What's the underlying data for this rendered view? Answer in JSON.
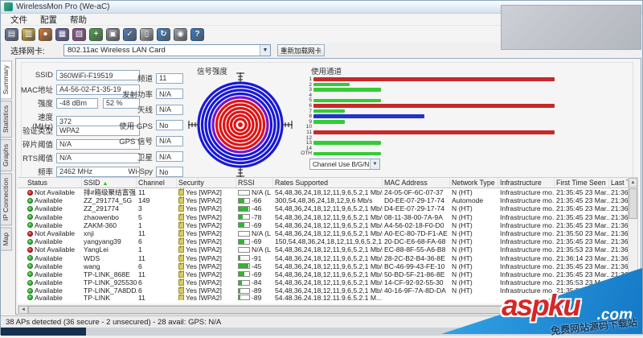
{
  "window": {
    "title": "WirelessMon Pro (We-aC)"
  },
  "menu": {
    "items": [
      "文件",
      "配置",
      "帮助"
    ]
  },
  "toolbar": {
    "icons": [
      {
        "name": "save-icon",
        "glyph": "▤",
        "color": "#6b7fae"
      },
      {
        "name": "open-folder-icon",
        "glyph": "▥",
        "color": "#e3bb3e"
      },
      {
        "name": "globe-icon",
        "glyph": "●",
        "color": "#e07820"
      },
      {
        "name": "adapters-icon",
        "glyph": "▦",
        "color": "#6a5fb0"
      },
      {
        "name": "adapters2-icon",
        "glyph": "▧",
        "color": "#9a4f9e"
      },
      {
        "name": "start-monitor-icon",
        "glyph": "+",
        "color": "#4aa44a"
      },
      {
        "name": "camera-icon",
        "glyph": "▣",
        "color": "#8a8f96"
      },
      {
        "name": "verify-icon",
        "glyph": "✓",
        "color": "#4a7fc0"
      },
      {
        "name": "report-icon",
        "glyph": "▯",
        "color": "#b9bdc4"
      },
      {
        "name": "refresh-icon",
        "glyph": "↻",
        "color": "#3a86d4"
      },
      {
        "name": "web-icon",
        "glyph": "◉",
        "color": "#9aa2ac"
      },
      {
        "name": "help-icon",
        "glyph": "?",
        "color": "#2f7fd0"
      }
    ]
  },
  "nic_bar": {
    "label": "选择网卡:",
    "selected": "802.11ac Wireless LAN Card",
    "reload_button": "重新加载网卡"
  },
  "tabs": [
    {
      "label": "Summary",
      "active": true
    },
    {
      "label": "Statistics",
      "active": false
    },
    {
      "label": "Graphs",
      "active": false
    },
    {
      "label": "IP Connection",
      "active": false
    },
    {
      "label": "Map",
      "active": false
    }
  ],
  "summary": {
    "fields_left": [
      {
        "label": "SSID",
        "value": "360WiFi-F19519"
      },
      {
        "label": "MAC地址",
        "value": "A4-56-02-F1-35-19"
      },
      {
        "label": "强度",
        "value": "-48 dBm",
        "value2": "52 %"
      },
      {
        "label": "速度 (MHz)",
        "value": "372"
      },
      {
        "label": "验证类型",
        "value": "WPA2"
      },
      {
        "label": "碎片阈值",
        "value": "N/A"
      },
      {
        "label": "RTS阈值",
        "value": "N/A"
      },
      {
        "label": "频率",
        "value": "2462 MHz"
      }
    ],
    "fields_mid": [
      {
        "label": "频道",
        "value": "11"
      },
      {
        "label": "发射功率",
        "value": "N/A"
      },
      {
        "label": "天线",
        "value": "N/A"
      },
      {
        "label": "使用 GPS",
        "value": "No"
      },
      {
        "label": "GPS 信号",
        "value": "N/A"
      },
      {
        "label": "卫星",
        "value": "N/A"
      },
      {
        "label": "Wi-Spy",
        "value": "No"
      }
    ],
    "radar_title": "信号强度",
    "channel_use_title": "使用通道",
    "channel_dropdown": "Channel Use B/G/N"
  },
  "chart_data": {
    "type": "bar",
    "orientation": "horizontal",
    "title": "使用通道",
    "categories": [
      "1",
      "2",
      "3",
      "4",
      "5",
      "6",
      "7",
      "8",
      "9",
      "10",
      "11",
      "12",
      "13",
      "14",
      "OTH"
    ],
    "values": [
      100,
      15,
      28,
      0,
      28,
      100,
      13,
      46,
      13,
      0,
      100,
      0,
      28,
      0,
      28
    ],
    "colors": [
      "#c82828",
      "#33cc33",
      "#33cc33",
      "#33cc33",
      "#33cc33",
      "#c82828",
      "#33cc33",
      "#2233cc",
      "#33cc33",
      "#33cc33",
      "#c82828",
      "#33cc33",
      "#33cc33",
      "#33cc33",
      "#33cc33"
    ],
    "xlim": [
      0,
      100
    ],
    "legend": "Channel Use B/G/N"
  },
  "table": {
    "columns": [
      "Status",
      "SSID",
      "Channel",
      "Security",
      "RSSI",
      "Rates Supported",
      "MAC Address",
      "Network Type",
      "Infrastructure",
      "First Time Seen",
      "Last Time S"
    ],
    "sort_column": "SSID",
    "rows": [
      {
        "status": "Not Available",
        "available": false,
        "ssid": "排#箱级聚结富强..",
        "channel": "11",
        "security": "Yes [WPA2]",
        "rssi": "N/A (L",
        "rssi_fill": 0,
        "rates": "54,48,36,24,18,12,11,9,6,5.2,1 Mb/s",
        "mac": "24-05-0F-6C-07-37",
        "network_type": "N (HT)",
        "infrastructure": "Infrastructure mo...",
        "first_seen": "21:35:45 23 Mar...",
        "last_seen": "21:36:08 2..."
      },
      {
        "status": "Available",
        "available": true,
        "ssid": "ZZ_291774_5G",
        "channel": "149",
        "security": "Yes [WPA2]",
        "rssi": "-66",
        "rssi_fill": 0.55,
        "rates": "300,54,48,36,24,18,12,9,6 Mb/s",
        "mac": "D0-EE-07-29-17-74",
        "network_type": "Automode",
        "infrastructure": "Infrastructure mo...",
        "first_seen": "21:35:45 23 Mar...",
        "last_seen": "21:36:14 2..."
      },
      {
        "status": "Available",
        "available": true,
        "ssid": "ZZ_291774",
        "channel": "3",
        "security": "Yes [WPA2]",
        "rssi": "-46",
        "rssi_fill": 0.9,
        "rates": "54,48,36,24,18,12,11,9,6,5.2,1 Mb/s",
        "mac": "D4-EE-07-29-17-74",
        "network_type": "N (HT)",
        "infrastructure": "Infrastructure mo...",
        "first_seen": "21:35:45 23 Mar...",
        "last_seen": "21:36:14 2..."
      },
      {
        "status": "Available",
        "available": true,
        "ssid": "zhaowenbo",
        "channel": "5",
        "security": "Yes [WPA2]",
        "rssi": "-78",
        "rssi_fill": 0.37,
        "rates": "54,48,36,24,18,12,11,9,6,5.2,1 Mb/s",
        "mac": "08-11-38-00-7A-9A",
        "network_type": "N (HT)",
        "infrastructure": "Infrastructure mo...",
        "first_seen": "21:35:45 23 Mar...",
        "last_seen": "21:36:14 2..."
      },
      {
        "status": "Available",
        "available": true,
        "ssid": "ZAKM-360",
        "channel": "1",
        "security": "Yes [WPA2]",
        "rssi": "-69",
        "rssi_fill": 0.5,
        "rates": "54,48,36,24,18,12,11,9,6,5.2,1 Mb/s",
        "mac": "A4-56-02-18-F0-D0",
        "network_type": "N (HT)",
        "infrastructure": "Infrastructure mo...",
        "first_seen": "21:35:45 23 Mar...",
        "last_seen": "21:36:14 2..."
      },
      {
        "status": "Not Available",
        "available": false,
        "ssid": "xnji",
        "channel": "11",
        "security": "Yes [WPA2]",
        "rssi": "N/A (L",
        "rssi_fill": 0,
        "rates": "54,48,36,24,18,12,11,9,6,5.2,1 Mb/s",
        "mac": "A0-EC-80-7D-F1-AE",
        "network_type": "N (HT)",
        "infrastructure": "Infrastructure mo...",
        "first_seen": "21:35:50 23 Mar...",
        "last_seen": "21:36:01 2..."
      },
      {
        "status": "Available",
        "available": true,
        "ssid": "yangyang39",
        "channel": "6",
        "security": "Yes [WPA2]",
        "rssi": "-69",
        "rssi_fill": 0.5,
        "rates": "150,54,48,36,24,18,12,11,9,6,5.2,1 Mb/s",
        "mac": "20-DC-E6-68-FA-68",
        "network_type": "N (HT)",
        "infrastructure": "Infrastructure mo...",
        "first_seen": "21:35:45 23 Mar...",
        "last_seen": "21:36:14 2..."
      },
      {
        "status": "Not Available",
        "available": false,
        "ssid": "YangLei",
        "channel": "1",
        "security": "Yes [WPA2]",
        "rssi": "N/A (L",
        "rssi_fill": 0,
        "rates": "54,48,36,24,18,12,11,9,6,5.2,1 Mb/s",
        "mac": "EC-88-8F-55-A6-B8",
        "network_type": "N (HT)",
        "infrastructure": "Infrastructure mo...",
        "first_seen": "21:35:53 23 Mar...",
        "last_seen": "21:36:01 2..."
      },
      {
        "status": "Available",
        "available": true,
        "ssid": "WDS",
        "channel": "11",
        "security": "Yes [WPA2]",
        "rssi": "-91",
        "rssi_fill": 0.15,
        "rates": "54,48,36,24,18,12,11,9,6,5.2,1 Mb/s",
        "mac": "28-2C-B2-B4-36-8E",
        "network_type": "N (HT)",
        "infrastructure": "Infrastructure mo...",
        "first_seen": "21:36:14 23 Mar...",
        "last_seen": "21:36:14 2..."
      },
      {
        "status": "Available",
        "available": true,
        "ssid": "wang",
        "channel": "6",
        "security": "Yes [WPA2]",
        "rssi": "-45",
        "rssi_fill": 0.92,
        "rates": "54,48,36,24,18,12,11,9,6,5.2,1 Mb/s",
        "mac": "BC-46-99-43-FE-10",
        "network_type": "N (HT)",
        "infrastructure": "Infrastructure mo...",
        "first_seen": "21:35:45 23 Mar...",
        "last_seen": "21:36:14 2..."
      },
      {
        "status": "Available",
        "available": true,
        "ssid": "TP-LINK_868E",
        "channel": "11",
        "security": "Yes [WPA2]",
        "rssi": "-69",
        "rssi_fill": 0.5,
        "rates": "54,48,36,24,18,12,11,9,6,5.2,1 Mb/s",
        "mac": "50-BD-5F-21-86-8E",
        "network_type": "N (HT)",
        "infrastructure": "Infrastructure mo...",
        "first_seen": "21:35:45 23 Mar...",
        "last_seen": "21:36:14 2..."
      },
      {
        "status": "Available",
        "available": true,
        "ssid": "TP-LINK_925530",
        "channel": "6",
        "security": "Yes [WPA2]",
        "rssi": "-84",
        "rssi_fill": 0.27,
        "rates": "54,48,36,24,18,12,11,9,6,5.2,1 Mb/s",
        "mac": "14-CF-92-92-55-30",
        "network_type": "N (HT)",
        "infrastructure": "Infrastructure mo...",
        "first_seen": "21:35:53 23 Mar...",
        "last_seen": "21:36:14 2..."
      },
      {
        "status": "Available",
        "available": true,
        "ssid": "TP-LINK_7A8DDA",
        "channel": "6",
        "security": "Yes [WPA2]",
        "rssi": "-89",
        "rssi_fill": 0.18,
        "rates": "54,48,36,24,18,12,11,9,6,5.2,1 Mb/s",
        "mac": "40-16-9F-7A-8D-DA",
        "network_type": "N (HT)",
        "infrastructure": "Infrastructure mo...",
        "first_seen": "21:35:53 23 Mar...",
        "last_seen": ""
      },
      {
        "status": "Available",
        "available": true,
        "ssid": "TP-LINK_",
        "channel": "11",
        "security": "Yes [WPA2]",
        "rssi": "-89",
        "rssi_fill": 0.18,
        "rates": "54,48,36,24,18,12,11,9,6,5.2,1 M...",
        "mac": "",
        "network_type": "",
        "infrastructure": "",
        "first_seen": "",
        "last_seen": "",
        "partial": true
      }
    ]
  },
  "status_bar": {
    "text": "38 APs detected (36 secure - 2 unsecured) - 28 avail: GPS: N/A"
  },
  "watermark": {
    "brand": "aspku",
    "tld": ".com",
    "tagline": "免费网站源码下载站"
  }
}
